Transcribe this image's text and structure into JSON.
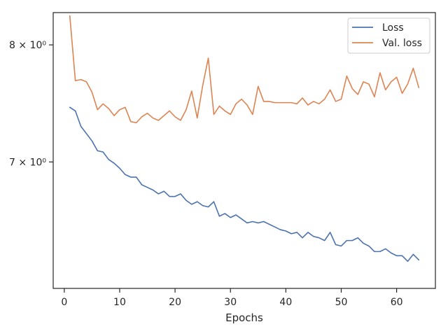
{
  "chart_data": {
    "type": "line",
    "xlabel": "Epochs",
    "ylabel": "",
    "yscale": "log",
    "xlim": [
      -2,
      67
    ],
    "ylim": [
      6.06,
      8.3
    ],
    "grid": false,
    "legend": "top-right",
    "xticks": [
      0,
      10,
      20,
      30,
      40,
      50,
      60
    ],
    "xtick_labels": [
      "0",
      "10",
      "20",
      "30",
      "40",
      "50",
      "60"
    ],
    "yticks": [
      7,
      8
    ],
    "ytick_labels": [
      "7 × 10⁰",
      "8 × 10⁰"
    ],
    "x": [
      1,
      2,
      3,
      4,
      5,
      6,
      7,
      8,
      9,
      10,
      11,
      12,
      13,
      14,
      15,
      16,
      17,
      18,
      19,
      20,
      21,
      22,
      23,
      24,
      25,
      26,
      27,
      28,
      29,
      30,
      31,
      32,
      33,
      34,
      35,
      36,
      37,
      38,
      39,
      40,
      41,
      42,
      43,
      44,
      45,
      46,
      47,
      48,
      49,
      50,
      51,
      52,
      53,
      54,
      55,
      56,
      57,
      58,
      59,
      60,
      61,
      62,
      63,
      64
    ],
    "series": [
      {
        "name": "Loss",
        "color": "#4c72b0",
        "values": [
          7.45,
          7.42,
          7.29,
          7.23,
          7.17,
          7.09,
          7.08,
          7.02,
          6.99,
          6.95,
          6.9,
          6.88,
          6.88,
          6.82,
          6.8,
          6.78,
          6.75,
          6.77,
          6.73,
          6.73,
          6.75,
          6.7,
          6.67,
          6.69,
          6.66,
          6.65,
          6.69,
          6.58,
          6.6,
          6.57,
          6.59,
          6.56,
          6.53,
          6.54,
          6.53,
          6.54,
          6.52,
          6.5,
          6.48,
          6.47,
          6.45,
          6.46,
          6.42,
          6.46,
          6.43,
          6.42,
          6.4,
          6.46,
          6.37,
          6.36,
          6.4,
          6.4,
          6.42,
          6.38,
          6.36,
          6.32,
          6.32,
          6.34,
          6.31,
          6.29,
          6.29,
          6.25,
          6.3,
          6.26
        ]
      },
      {
        "name": "Val. loss",
        "color": "#dd8452",
        "values": [
          8.27,
          7.68,
          7.69,
          7.67,
          7.58,
          7.43,
          7.48,
          7.44,
          7.38,
          7.43,
          7.45,
          7.33,
          7.32,
          7.37,
          7.4,
          7.36,
          7.34,
          7.38,
          7.42,
          7.37,
          7.34,
          7.43,
          7.59,
          7.36,
          7.64,
          7.88,
          7.39,
          7.46,
          7.42,
          7.39,
          7.48,
          7.52,
          7.47,
          7.39,
          7.63,
          7.5,
          7.5,
          7.49,
          7.49,
          7.49,
          7.49,
          7.48,
          7.53,
          7.47,
          7.5,
          7.48,
          7.52,
          7.6,
          7.5,
          7.52,
          7.72,
          7.61,
          7.56,
          7.67,
          7.65,
          7.54,
          7.75,
          7.6,
          7.67,
          7.71,
          7.57,
          7.65,
          7.79,
          7.62
        ]
      }
    ]
  }
}
